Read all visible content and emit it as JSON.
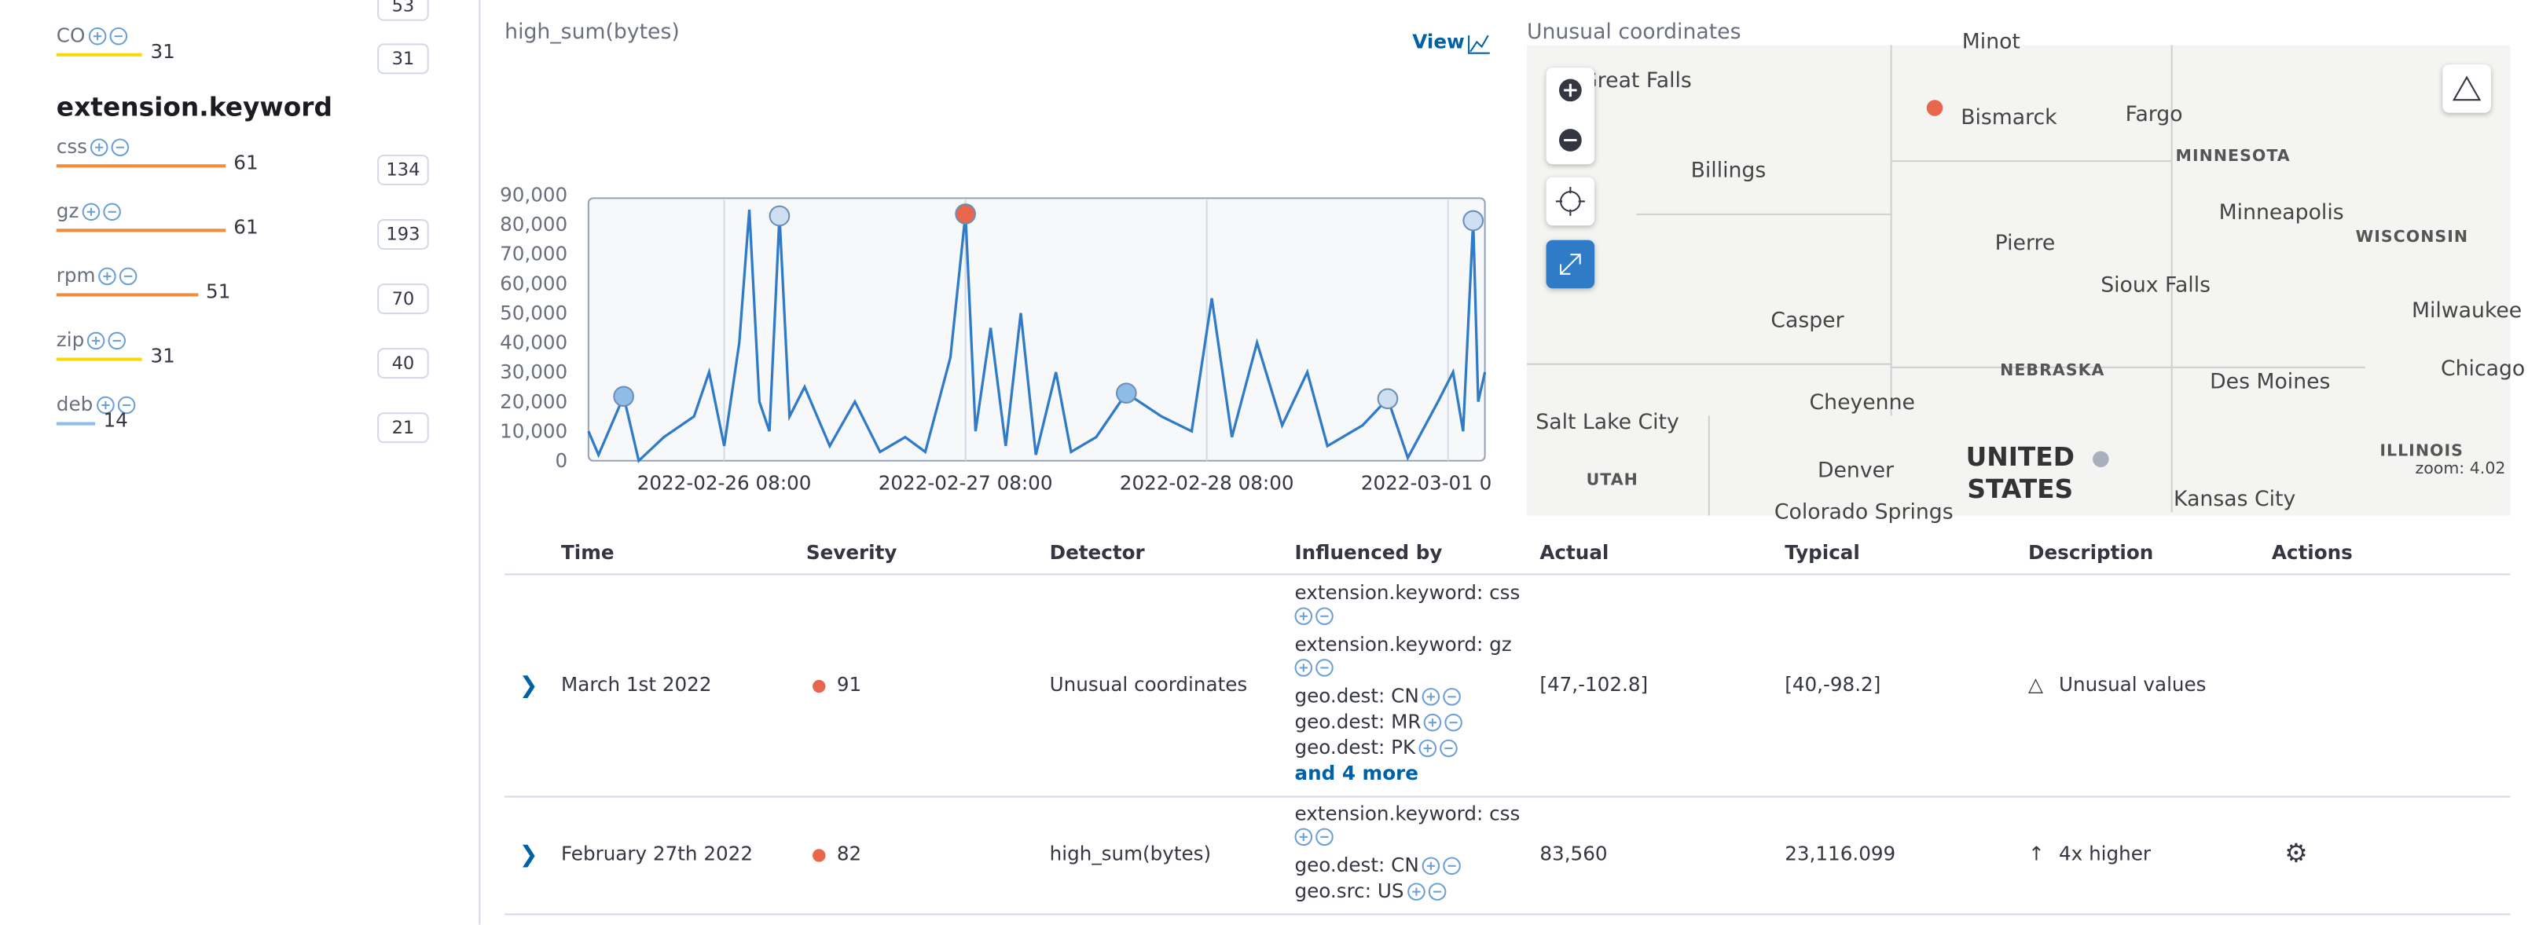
{
  "sidebar": {
    "partial_count": "53",
    "first_field": {
      "name": "CO",
      "score": 31,
      "color": "#f5d90a",
      "count": "31"
    },
    "heading": "extension.keyword",
    "fields": [
      {
        "name": "css",
        "score": 61,
        "color": "#f08c3c",
        "count": "134"
      },
      {
        "name": "gz",
        "score": 61,
        "color": "#f08c3c",
        "count": "193"
      },
      {
        "name": "rpm",
        "score": 51,
        "color": "#f08c3c",
        "count": "70"
      },
      {
        "name": "zip",
        "score": 31,
        "color": "#f5d90a",
        "count": "40"
      },
      {
        "name": "deb",
        "score": 14,
        "color": "#8cbcea",
        "count": "21"
      }
    ]
  },
  "chart_data": {
    "type": "line",
    "title": "high_sum(bytes)",
    "view_link": "View",
    "color": "#2f7bc8",
    "xlim": [
      "2022-02-25 18:30",
      "2022-03-01 11:40"
    ],
    "xticks": [
      "2022-02-26 08:00",
      "2022-02-27 08:00",
      "2022-02-28 08:00",
      "2022-03-01 08:00"
    ],
    "ylim": [
      0,
      90000
    ],
    "yticks": [
      0,
      {
        "value": 10000,
        "label": "10,000"
      },
      {
        "value": 20000,
        "label": "20,000"
      },
      {
        "value": 30000,
        "label": "30,000"
      },
      {
        "value": 40000,
        "label": "40,000"
      },
      {
        "value": 50000,
        "label": "50,000"
      },
      {
        "value": 60000,
        "label": "60,000"
      },
      {
        "value": 70000,
        "label": "70,000"
      },
      {
        "value": 80000,
        "label": "80,000"
      },
      {
        "value": 90000,
        "label": "90,000"
      }
    ],
    "x": [
      "2022-02-25 18:30",
      "2022-02-25 19:30",
      "2022-02-25 22:00",
      "2022-02-25 23:30",
      "2022-02-26 02:00",
      "2022-02-26 05:00",
      "2022-02-26 06:30",
      "2022-02-26 08:00",
      "2022-02-26 09:30",
      "2022-02-26 10:30",
      "2022-02-26 11:30",
      "2022-02-26 12:30",
      "2022-02-26 13:30",
      "2022-02-26 14:30",
      "2022-02-26 16:00",
      "2022-02-26 18:30",
      "2022-02-26 21:00",
      "2022-02-26 23:30",
      "2022-02-27 02:00",
      "2022-02-27 04:00",
      "2022-02-27 06:30",
      "2022-02-27 08:00",
      "2022-02-27 09:00",
      "2022-02-27 10:30",
      "2022-02-27 12:00",
      "2022-02-27 13:30",
      "2022-02-27 15:00",
      "2022-02-27 17:00",
      "2022-02-27 18:30",
      "2022-02-27 21:00",
      "2022-02-28 00:00",
      "2022-02-28 03:30",
      "2022-02-28 06:30",
      "2022-02-28 08:30",
      "2022-02-28 10:30",
      "2022-02-28 13:00",
      "2022-02-28 15:30",
      "2022-02-28 18:00",
      "2022-02-28 20:00",
      "2022-02-28 23:30",
      "2022-03-01 02:00",
      "2022-03-01 04:00",
      "2022-03-01 07:00",
      "2022-03-01 08:30",
      "2022-03-01 09:30",
      "2022-03-01 10:30",
      "2022-03-01 11:00",
      "2022-03-01 11:40"
    ],
    "values": [
      10000,
      2000,
      21800,
      0,
      8000,
      15000,
      30000,
      5000,
      40000,
      85000,
      20000,
      10000,
      82900,
      15000,
      25000,
      5000,
      20000,
      3000,
      8000,
      3000,
      35000,
      83560,
      10000,
      45000,
      5000,
      50000,
      2000,
      30000,
      3000,
      8000,
      22900,
      15000,
      10000,
      55000,
      8000,
      40000,
      12000,
      30000,
      5000,
      12000,
      21000,
      1000,
      20000,
      30000,
      10000,
      81300,
      20000,
      30000
    ],
    "anomalies": [
      {
        "x": "2022-02-25 22:00",
        "value": 21800,
        "color": "#8fbbe8"
      },
      {
        "x": "2022-02-26 13:30",
        "value": 82900,
        "color": "#cfdff2"
      },
      {
        "x": "2022-02-27 08:00",
        "value": 83560,
        "color": "#e7664c"
      },
      {
        "x": "2022-02-28 00:00",
        "value": 22900,
        "color": "#8fbbe8"
      },
      {
        "x": "2022-03-01 02:00",
        "value": 21000,
        "color": "#cfdff2"
      },
      {
        "x": "2022-03-01 10:30",
        "value": 81300,
        "color": "#cfdff2"
      }
    ]
  },
  "map": {
    "title": "Unusual coordinates",
    "zoom": "zoom: 4.02",
    "labels": [
      "Minot",
      "Great Falls",
      "Bismarck",
      "Fargo",
      "MINNESOTA",
      "Billings",
      "Minneapolis",
      "WISCONSIN",
      "Pierre",
      "Sioux Falls",
      "Milwaukee",
      "Casper",
      "Chicago",
      "NEBRASKA",
      "Des Moines",
      "Cheyenne",
      "Salt Lake City",
      "ILLINOIS",
      "UNITED",
      "STATES",
      "UTAH",
      "Denver",
      "Kansas City",
      "Colorado Springs"
    ]
  },
  "table": {
    "headers": [
      "Time",
      "Severity",
      "Detector",
      "Influenced by",
      "Actual",
      "Typical",
      "Description",
      "Actions"
    ],
    "rows": [
      {
        "time": "March 1st 2022",
        "severity": "91",
        "detector": "Unusual coordinates",
        "influencers": [
          "extension.keyword: css",
          "extension.keyword: gz",
          "geo.dest: CN",
          "geo.dest: MR",
          "geo.dest: PK"
        ],
        "more": "and 4 more",
        "actual": "[47,-102.8]",
        "typical": "[40,-98.2]",
        "description": "Unusual values"
      },
      {
        "time": "February 27th 2022",
        "severity": "82",
        "detector": "high_sum(bytes)",
        "influencers": [
          "extension.keyword: css",
          "geo.dest: CN",
          "geo.src: US"
        ],
        "actual": "83,560",
        "typical": "23,116.099",
        "description": "4x higher"
      }
    ]
  }
}
